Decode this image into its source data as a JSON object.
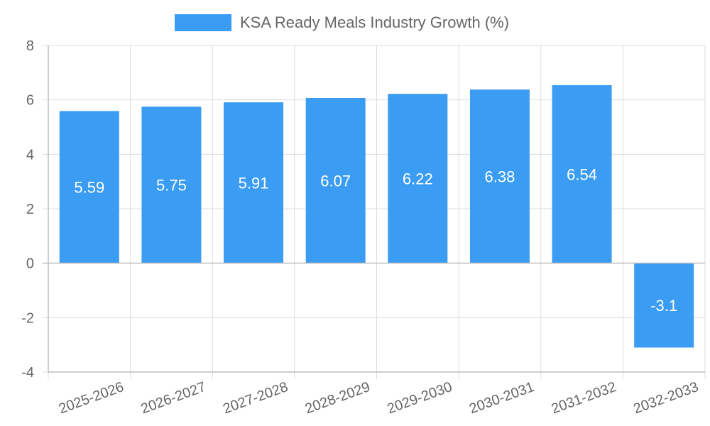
{
  "chart_data": {
    "type": "bar",
    "categories": [
      "2025-2026",
      "2026-2027",
      "2027-2028",
      "2028-2029",
      "2029-2030",
      "2030-2031",
      "2031-2032",
      "2032-2033"
    ],
    "series": [
      {
        "name": "KSA Ready Meals Industry Growth (%)",
        "values": [
          5.59,
          5.75,
          5.91,
          6.07,
          6.22,
          6.38,
          6.54,
          -3.1
        ],
        "color": "#3a9cf2"
      }
    ],
    "data_labels": [
      "5.59",
      "5.75",
      "5.91",
      "6.07",
      "6.22",
      "6.38",
      "6.54",
      "-3.1"
    ],
    "ylim": [
      -4,
      8
    ],
    "yticks": [
      8,
      6,
      4,
      2,
      0,
      -2,
      -4
    ],
    "grid": true,
    "legend_position": "top-center",
    "xtick_rotation_deg": -20
  }
}
